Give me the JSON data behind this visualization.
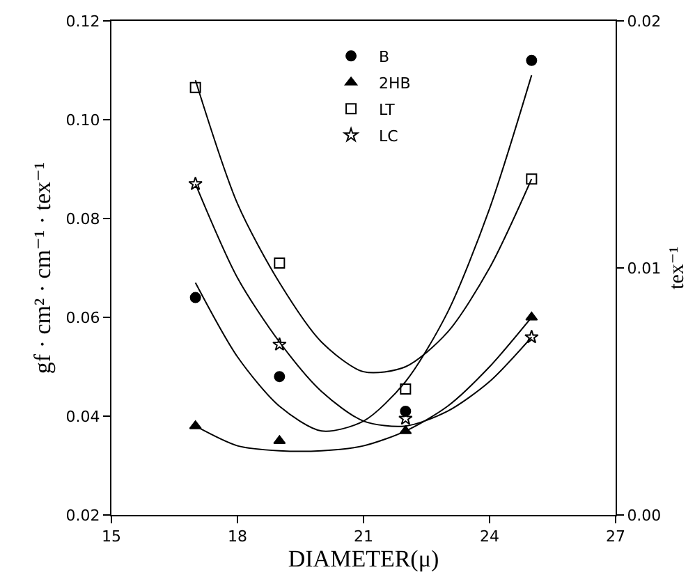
{
  "chart_data": {
    "type": "scatter",
    "xlabel": "DIAMETER(μ)",
    "ylabel": "gf · cm² · cm⁻¹ · tex⁻¹",
    "y2label": "tex⁻¹",
    "x": [
      17,
      19,
      22,
      25
    ],
    "xlim": [
      15,
      27
    ],
    "xticks": [
      15,
      18,
      21,
      24,
      27
    ],
    "ylim": [
      0.02,
      0.12
    ],
    "yticks": [
      {
        "value": 0.02,
        "label": "0.02"
      },
      {
        "value": 0.04,
        "label": "0.04"
      },
      {
        "value": 0.06,
        "label": "0.06"
      },
      {
        "value": 0.08,
        "label": "0.08"
      },
      {
        "value": 0.1,
        "label": "0.10"
      },
      {
        "value": 0.12,
        "label": "0.12"
      }
    ],
    "y2lim": [
      0,
      0.02
    ],
    "y2ticks": [
      {
        "value": 0,
        "label": "0.00"
      },
      {
        "value": 0.01,
        "label": "0.01"
      },
      {
        "value": 0.02,
        "label": "0.02"
      }
    ],
    "grid": false,
    "legend": "top",
    "series": [
      {
        "name": "B",
        "color": "#000000",
        "marker": "circle",
        "values": [
          0.064,
          0.048,
          0.041,
          0.112
        ]
      },
      {
        "name": "2HB",
        "color": "#000000",
        "marker": "triangle",
        "values": [
          0.038,
          0.035,
          0.037,
          0.06
        ]
      },
      {
        "name": "LT",
        "color": "#000000",
        "marker": "square",
        "axis": "y2",
        "values": [
          0.0173,
          0.0102,
          0.0051,
          0.0136
        ]
      },
      {
        "name": "LC",
        "color": "#000000",
        "marker": "star",
        "axis": "y2",
        "values": [
          0.0134,
          0.0069,
          0.0039,
          0.0072
        ]
      },
      {
        "type": "line",
        "color": "#000000",
        "marker": "none",
        "x": [
          17,
          18,
          19,
          20,
          21,
          22,
          23,
          24,
          25
        ],
        "values": [
          0.067,
          0.052,
          0.042,
          0.037,
          0.039,
          0.047,
          0.061,
          0.082,
          0.109
        ]
      },
      {
        "type": "line",
        "color": "#000000",
        "marker": "none",
        "x": [
          17,
          18,
          19,
          20,
          21,
          22,
          23,
          24,
          25
        ],
        "values": [
          0.038,
          0.034,
          0.033,
          0.033,
          0.034,
          0.037,
          0.042,
          0.05,
          0.06
        ]
      },
      {
        "type": "line",
        "color": "#000000",
        "marker": "none",
        "axis": "y2",
        "x": [
          17,
          18,
          19,
          20,
          21,
          22,
          23,
          24,
          25
        ],
        "values": [
          0.0176,
          0.0126,
          0.0094,
          0.007,
          0.0058,
          0.006,
          0.0074,
          0.01,
          0.0136
        ]
      },
      {
        "type": "line",
        "color": "#000000",
        "marker": "none",
        "axis": "y2",
        "x": [
          17,
          18,
          19,
          20,
          21,
          22,
          23,
          24,
          25
        ],
        "values": [
          0.0134,
          0.0096,
          0.007,
          0.005,
          0.0038,
          0.0036,
          0.0042,
          0.0054,
          0.0072
        ]
      }
    ]
  }
}
